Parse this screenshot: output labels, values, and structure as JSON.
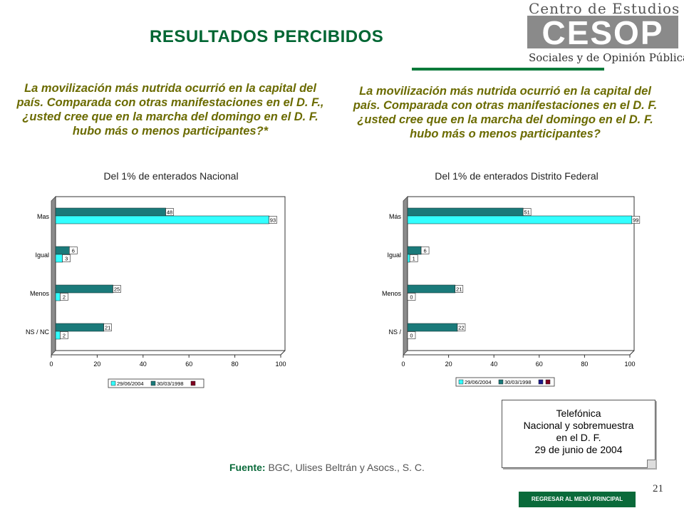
{
  "header": {
    "title": "RESULTADOS PERCIBIDOS",
    "logo_top": "Centro de Estudios",
    "logo_mid": "CESOP",
    "logo_bottom": "Sociales y de Opinión Pública"
  },
  "questions": [
    "La movilización más nutrida ocurrió en la capital del país. Comparada con otras manifestaciones en el D. F., ¿usted cree que en la marcha del domingo en el D. F. hubo más o menos participantes?*",
    "La movilización más nutrida ocurrió en la capital del país. Comparada con otras manifestaciones en el D. F. ¿usted cree que en la marcha del domingo en el D. F. hubo más o menos participantes?"
  ],
  "note": {
    "line1": "Telefónica",
    "line2": "Nacional y sobremuestra",
    "line3": "en el D. F.",
    "line4": "29 de junio de 2004"
  },
  "source": {
    "label": "Fuente:",
    "text": " BGC, Ulises Beltrán y Asocs., S. C."
  },
  "page_number": "21",
  "menu_button": "REGRESAR AL MENÚ PRINCIPAL",
  "colors": {
    "series1": "#33ffff",
    "series2": "#1a7a7a",
    "extra": "#800020",
    "extra2": "#1a1a8c"
  },
  "chart_data": [
    {
      "type": "bar",
      "orientation": "horizontal",
      "title": "Del 1% de enterados Nacional",
      "categories": [
        "Mas",
        "Igual",
        "Menos",
        "NS / NC"
      ],
      "series": [
        {
          "name": "29/06/2004",
          "values": [
            93,
            3,
            2,
            2
          ]
        },
        {
          "name": "30/03/1998",
          "values": [
            48,
            6,
            25,
            21
          ]
        }
      ],
      "xticks": [
        "0",
        "20",
        "40",
        "60",
        "80",
        "100"
      ],
      "xlim": [
        0,
        100
      ],
      "legend_position": "bottom"
    },
    {
      "type": "bar",
      "orientation": "horizontal",
      "title": "Del 1% de enterados Distrito Federal",
      "categories": [
        "Más",
        "Igual",
        "Menos",
        "NS /"
      ],
      "series": [
        {
          "name": "29/06/2004",
          "values": [
            99,
            1,
            0,
            0
          ]
        },
        {
          "name": "30/03/1998",
          "values": [
            51,
            6,
            21,
            22
          ]
        }
      ],
      "xticks": [
        "0",
        "20",
        "40",
        "60",
        "80",
        "100"
      ],
      "xlim": [
        0,
        100
      ],
      "legend_position": "bottom"
    }
  ]
}
